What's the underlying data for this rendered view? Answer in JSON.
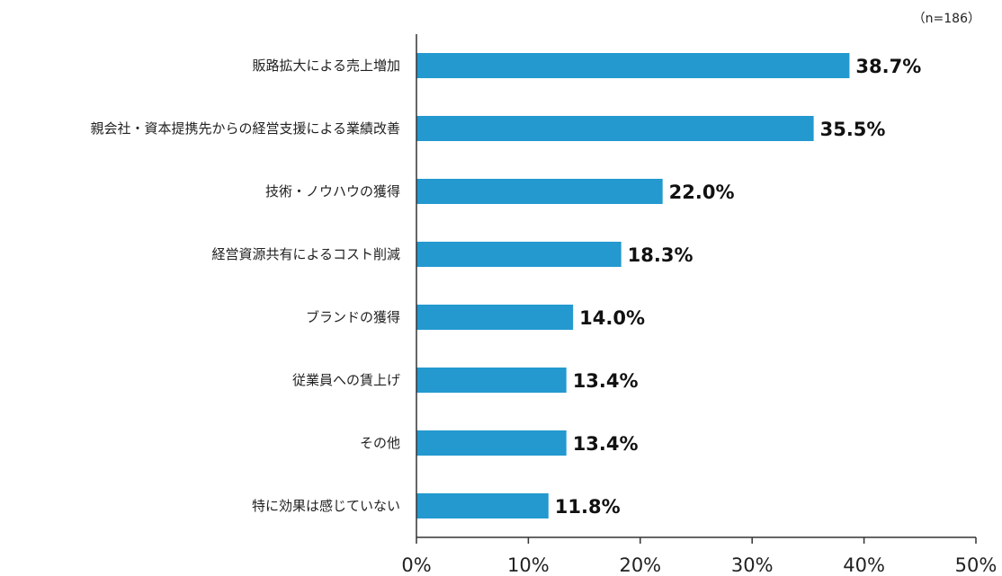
{
  "chart_data": {
    "type": "bar",
    "orientation": "horizontal",
    "note": "（n=186）",
    "categories": [
      "販路拡大による売上増加",
      "親会社・資本提携先からの経営支援による業績改善",
      "技術・ノウハウの獲得",
      "経営資源共有によるコスト削減",
      "ブランドの獲得",
      "従業員への賃上げ",
      "その他",
      "特に効果は感じていない"
    ],
    "values": [
      38.7,
      35.5,
      22.0,
      18.3,
      14.0,
      13.4,
      13.4,
      11.8
    ],
    "value_labels": [
      "38.7%",
      "35.5%",
      "22.0%",
      "18.3%",
      "14.0%",
      "13.4%",
      "13.4%",
      "11.8%"
    ],
    "xlim": [
      0,
      50
    ],
    "x_ticks": [
      0,
      10,
      20,
      30,
      40,
      50
    ],
    "x_tick_labels": [
      "0%",
      "10%",
      "20%",
      "30%",
      "40%",
      "50%"
    ],
    "grid": false,
    "bar_color": "#2399cf",
    "axis_color": "#333333"
  }
}
